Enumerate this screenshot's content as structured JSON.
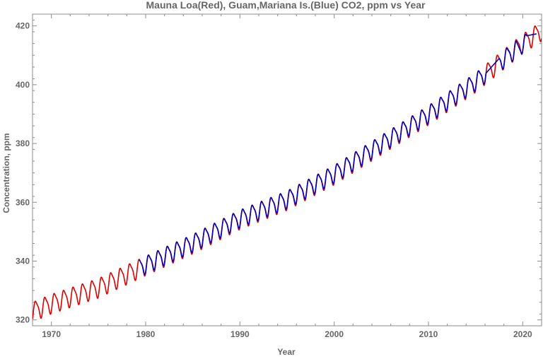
{
  "chart_data": {
    "type": "line",
    "title": "Mauna Loa(Red), Guam,Mariana Is.(Blue) CO2, ppm vs Year",
    "xlabel": "Year",
    "ylabel": "Concentration, ppm",
    "xlim": [
      1968,
      2022
    ],
    "ylim": [
      318,
      424
    ],
    "x_ticks": [
      1970,
      1980,
      1990,
      2000,
      2010,
      2020
    ],
    "y_ticks": [
      320,
      340,
      360,
      380,
      400,
      420
    ],
    "grid": false,
    "legend": "none",
    "series": [
      {
        "color": "#dd0000",
        "x_start": 1968,
        "x_end": 2022,
        "annual_mean": [
          [
            1968,
            323.0
          ],
          [
            1970,
            325.7
          ],
          [
            1975,
            331.1
          ],
          [
            1980,
            338.7
          ],
          [
            1985,
            346.1
          ],
          [
            1990,
            354.4
          ],
          [
            1995,
            360.9
          ],
          [
            2000,
            369.6
          ],
          [
            2005,
            379.8
          ],
          [
            2010,
            389.9
          ],
          [
            2015,
            401.0
          ],
          [
            2020,
            414.2
          ],
          [
            2022,
            418.5
          ]
        ],
        "seasonal_amplitude": 3.2
      },
      {
        "color": "#0000bb",
        "x_start": 1979.3,
        "x_end": 2021.5,
        "annual_mean": [
          [
            1979.3,
            337.8
          ],
          [
            1980,
            338.9
          ],
          [
            1985,
            346.3
          ],
          [
            1990,
            354.6
          ],
          [
            1995,
            361.1
          ],
          [
            2000,
            369.8
          ],
          [
            2005,
            380.0
          ],
          [
            2010,
            390.1
          ],
          [
            2015,
            401.2
          ],
          [
            2020,
            414.0
          ],
          [
            2021.5,
            416.0
          ]
        ],
        "seasonal_amplitude": 2.9,
        "gaps": [
          [
            2016.1,
            2017.5
          ],
          [
            2019.3,
            2019.9
          ],
          [
            2020.4,
            2021.5
          ]
        ]
      }
    ]
  }
}
